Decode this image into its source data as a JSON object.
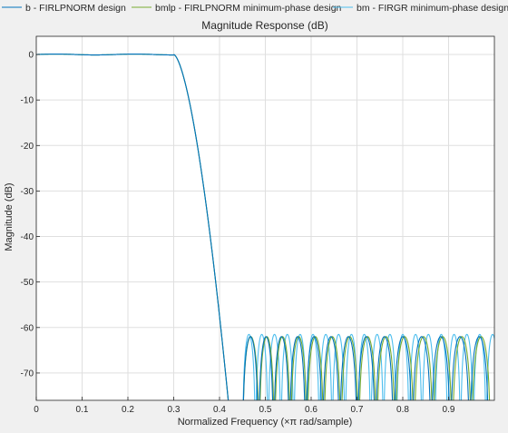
{
  "figure": {
    "background": "#f0f0f0",
    "axes_background": "#ffffff"
  },
  "chart_data": {
    "type": "line",
    "title": "Magnitude Response (dB)",
    "xlabel": "Normalized Frequency (×π rad/sample)",
    "ylabel": "Magnitude (dB)",
    "xlim": [
      0,
      1
    ],
    "ylim": [
      -76,
      4
    ],
    "xticks": [
      0,
      0.1,
      0.2,
      0.3,
      0.4,
      0.5,
      0.6,
      0.7,
      0.8,
      0.9
    ],
    "yticks": [
      0,
      -10,
      -20,
      -30,
      -40,
      -50,
      -60,
      -70
    ],
    "xtick_labels": [
      "0",
      "0.1",
      "0.2",
      "0.3",
      "0.4",
      "0.5",
      "0.6",
      "0.7",
      "0.8",
      "0.9"
    ],
    "ytick_labels": [
      "0",
      "-10",
      "-20",
      "-30",
      "-40",
      "-50",
      "-60",
      "-70"
    ],
    "grid": true,
    "legend_position": "top",
    "series": [
      {
        "name": "b - FIRLPNORM design",
        "color": "#0072bd",
        "passband_edge": 0.3,
        "stopband_edge": 0.45,
        "passband_ripple_db": 0.2,
        "stopband_peak_db": -62,
        "stopband_lobe_peaks": [
          0.469,
          0.501,
          0.535,
          0.57,
          0.606,
          0.643,
          0.681,
          0.72,
          0.76,
          0.8,
          0.841,
          0.883,
          0.925,
          0.967
        ]
      },
      {
        "name": "bmlp - FIRLPNORM minimum-phase design",
        "color": "#77ac30",
        "passband_edge": 0.3,
        "stopband_edge": 0.45,
        "passband_ripple_db": 0.2,
        "stopband_peak_db": -62,
        "stopband_lobe_peaks": [
          0.47,
          0.503,
          0.537,
          0.573,
          0.609,
          0.646,
          0.684,
          0.723,
          0.763,
          0.804,
          0.845,
          0.887,
          0.929,
          0.971
        ]
      },
      {
        "name": "bm - FIRGR minimum-phase design",
        "color": "#4dbeee",
        "passband_edge": 0.3,
        "stopband_edge": 0.45,
        "passband_ripple_db": 0.2,
        "stopband_peak_db": -61.5,
        "stopband_lobe_peaks": [
          0.465,
          0.492,
          0.52,
          0.548,
          0.576,
          0.604,
          0.632,
          0.66,
          0.688,
          0.716,
          0.744,
          0.772,
          0.8,
          0.828,
          0.856,
          0.884,
          0.912,
          0.94,
          0.968,
          0.996
        ]
      }
    ]
  }
}
